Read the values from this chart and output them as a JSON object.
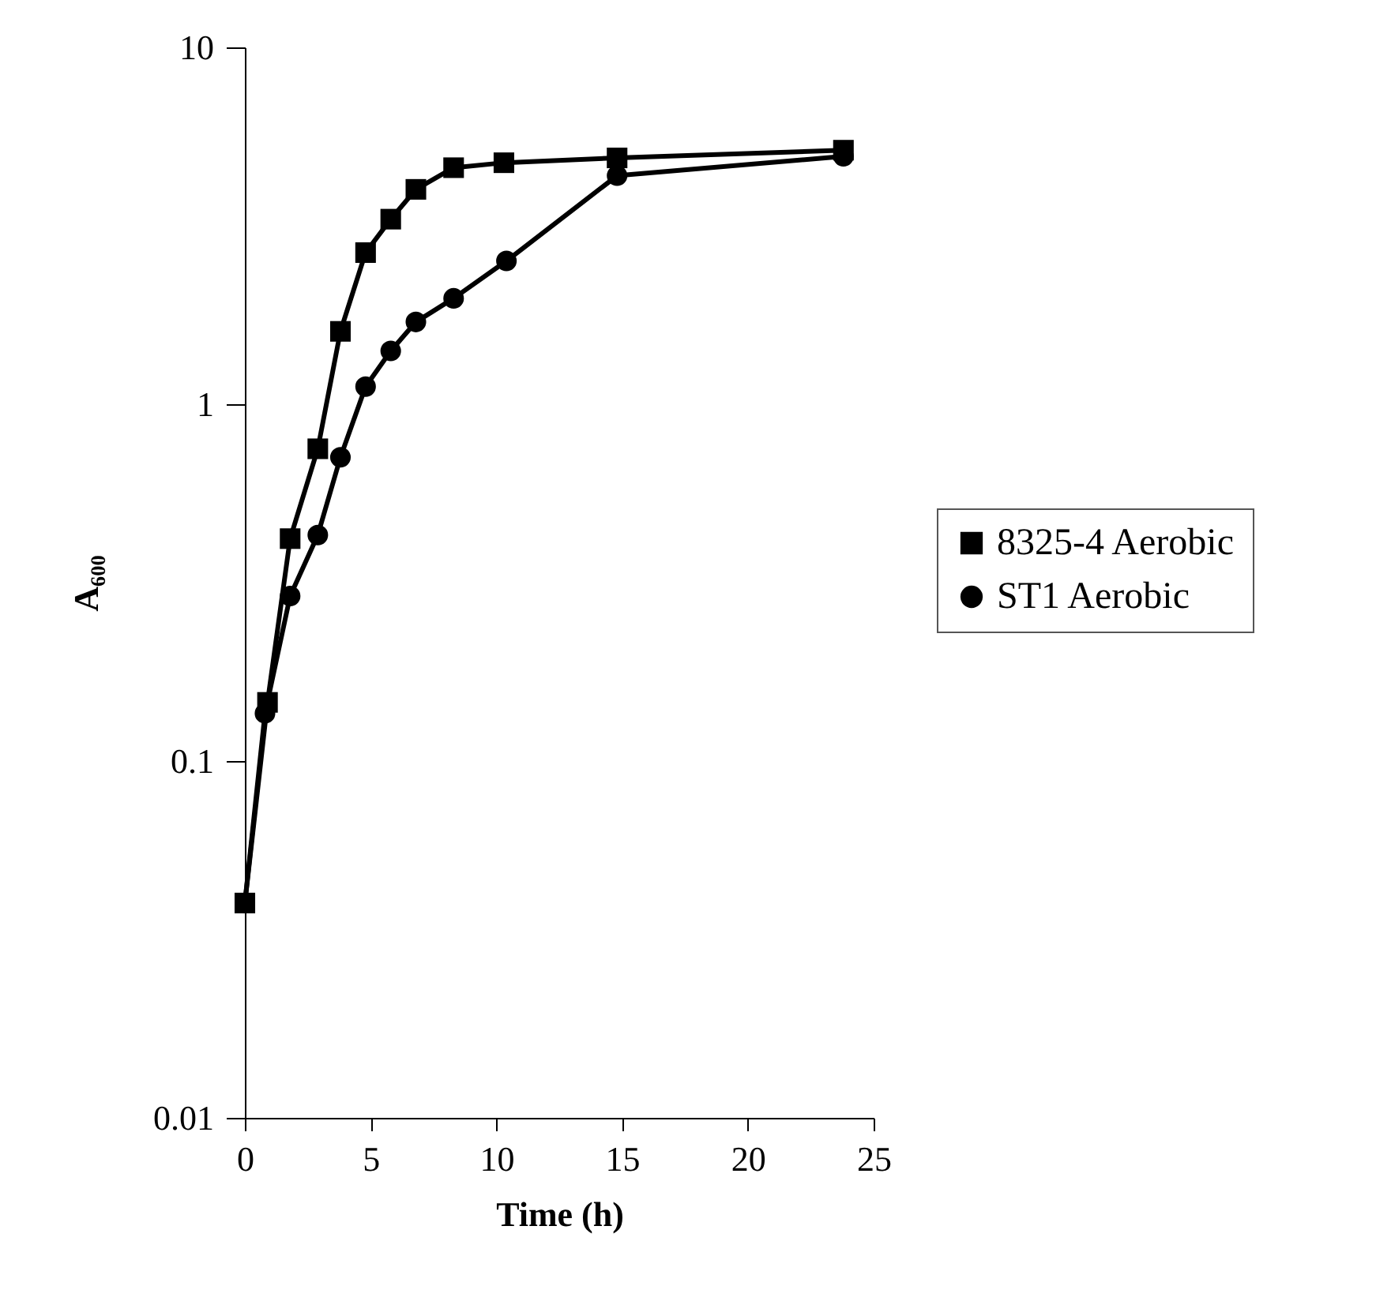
{
  "chart_data": {
    "type": "line",
    "xlabel": "Time (h)",
    "ylabel": "A₆₀₀",
    "log": "y",
    "xlim": [
      0,
      25
    ],
    "xticks": [
      0,
      5,
      10,
      15,
      20,
      25
    ],
    "ylim": [
      0.01,
      10
    ],
    "yticks": [
      0.01,
      0.1,
      1,
      10
    ],
    "grid": false,
    "legend": "right",
    "line_style": "solid",
    "series": [
      {
        "name": "8325-4 Aerobic",
        "color": "#000000",
        "marker": "square",
        "x": [
          0,
          0.9,
          1.8,
          2.9,
          3.8,
          4.8,
          5.8,
          6.8,
          8.3,
          10.3,
          14.8,
          23.8
        ],
        "values": [
          0.04,
          0.146,
          0.42,
          0.75,
          1.6,
          2.66,
          3.3,
          4.0,
          4.6,
          4.75,
          4.9,
          5.15
        ]
      },
      {
        "name": "ST1 Aerobic",
        "color": "#000000",
        "marker": "circle",
        "x": [
          0,
          0.8,
          1.8,
          2.9,
          3.8,
          4.8,
          5.8,
          6.8,
          8.3,
          10.4,
          14.8,
          23.8
        ],
        "values": [
          0.04,
          0.136,
          0.29,
          0.43,
          0.71,
          1.12,
          1.41,
          1.7,
          1.98,
          2.52,
          4.37,
          4.95
        ]
      }
    ]
  }
}
